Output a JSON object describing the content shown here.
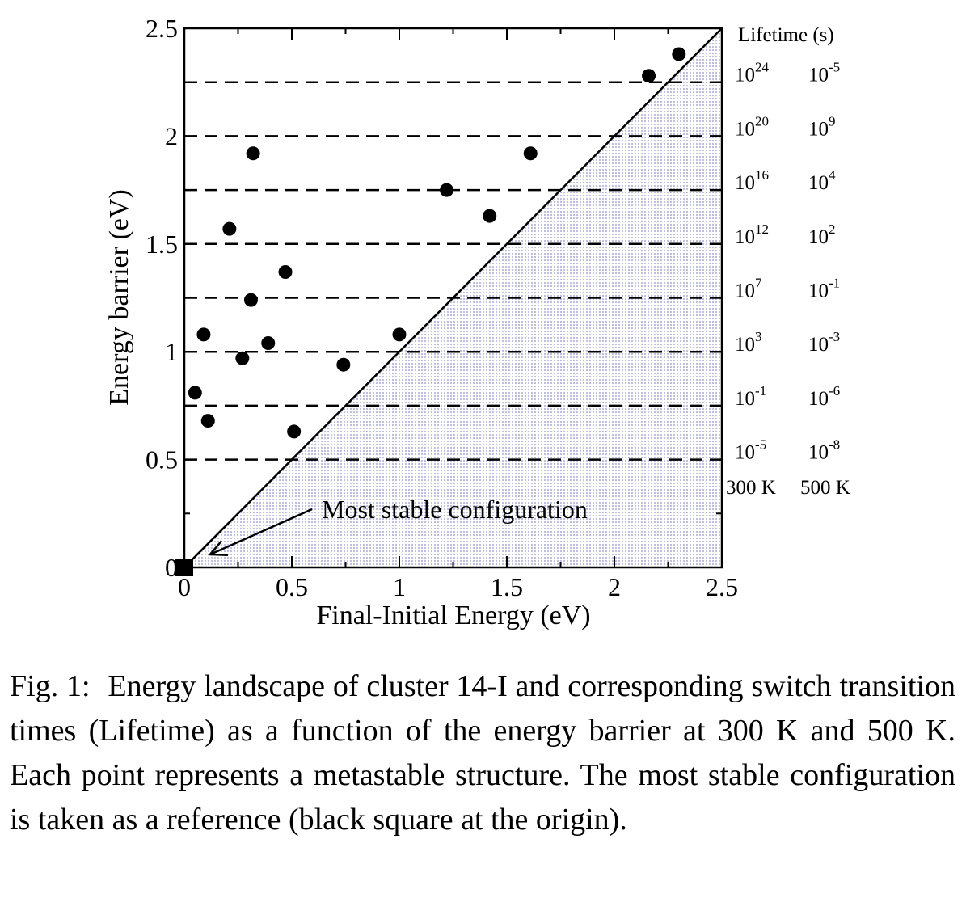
{
  "chart_data": {
    "type": "scatter",
    "xlabel": "Final-Initial Energy (eV)",
    "ylabel": "Energy barrier (eV)",
    "xlim": [
      0,
      2.5
    ],
    "ylim": [
      0,
      2.5
    ],
    "xticks": [
      "0",
      "0.5",
      "1",
      "1.5",
      "2",
      "2.5"
    ],
    "yticks": [
      "0",
      "0.5",
      "1",
      "1.5",
      "2",
      "2.5"
    ],
    "diagonal_line": {
      "from": [
        0,
        0
      ],
      "to": [
        2.5,
        2.5
      ],
      "shaded_region": "below diagonal"
    },
    "shade_color": "#b8b8dc",
    "points": [
      {
        "x": 0.05,
        "y": 0.81
      },
      {
        "x": 0.09,
        "y": 1.08
      },
      {
        "x": 0.11,
        "y": 0.68
      },
      {
        "x": 0.21,
        "y": 1.57
      },
      {
        "x": 0.27,
        "y": 0.97
      },
      {
        "x": 0.31,
        "y": 1.24
      },
      {
        "x": 0.32,
        "y": 1.92
      },
      {
        "x": 0.39,
        "y": 1.04
      },
      {
        "x": 0.47,
        "y": 1.37
      },
      {
        "x": 0.51,
        "y": 0.63
      },
      {
        "x": 0.74,
        "y": 0.94
      },
      {
        "x": 1.0,
        "y": 1.08
      },
      {
        "x": 1.22,
        "y": 1.75
      },
      {
        "x": 1.42,
        "y": 1.63
      },
      {
        "x": 1.61,
        "y": 1.92
      },
      {
        "x": 2.16,
        "y": 2.28
      },
      {
        "x": 2.3,
        "y": 2.38
      }
    ],
    "reference_point": {
      "x": 0,
      "y": 0,
      "marker": "square"
    },
    "annotation": {
      "text": "Most stable configuration",
      "points_to": [
        0.12,
        0.06
      ]
    },
    "lifetime_axis": {
      "title": "Lifetime (s)",
      "columns": [
        "300 K",
        "500 K"
      ],
      "levels": [
        {
          "barrier": 2.25,
          "t300": "24",
          "t500": "-5"
        },
        {
          "barrier": 2.0,
          "t300": "20",
          "t500": "9"
        },
        {
          "barrier": 1.75,
          "t300": "16",
          "t500": "4"
        },
        {
          "barrier": 1.5,
          "t300": "12",
          "t500": "2"
        },
        {
          "barrier": 1.25,
          "t300": "7",
          "t500": "-1"
        },
        {
          "barrier": 1.0,
          "t300": "3",
          "t500": "-3"
        },
        {
          "barrier": 0.75,
          "t300": "-1",
          "t500": "-6"
        },
        {
          "barrier": 0.5,
          "t300": "-5",
          "t500": "-8"
        }
      ]
    }
  },
  "caption": {
    "label": "Fig. 1:",
    "text": "Energy landscape of cluster 14-I and corresponding switch transition times (Lifetime) as a function of the energy barrier at 300 K and 500 K. Each point represents a metastable structure. The most stable configuration is taken as a reference (black square at the origin)."
  }
}
